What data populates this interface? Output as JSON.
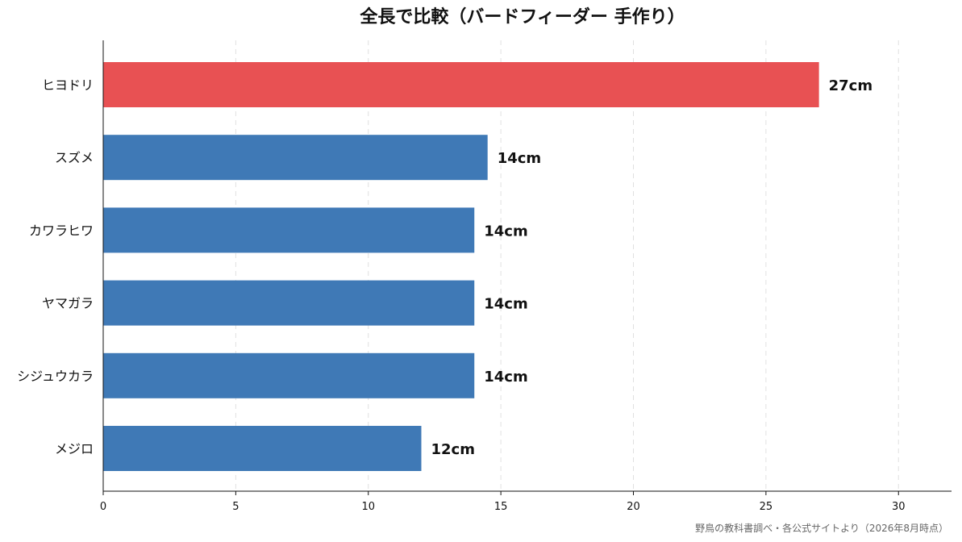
{
  "chart_data": {
    "type": "bar",
    "orientation": "horizontal",
    "title": "全長で比較（バードフィーダー 手作り）",
    "categories": [
      "ヒヨドリ",
      "スズメ",
      "カワラヒワ",
      "ヤマガラ",
      "シジュウカラ",
      "メジロ"
    ],
    "values": [
      27,
      14.5,
      14,
      14,
      14,
      12
    ],
    "data_labels": [
      "27cm",
      "14cm",
      "14cm",
      "14cm",
      "14cm",
      "12cm"
    ],
    "highlight_index": 0,
    "xlim": [
      0,
      32
    ],
    "x_ticks": [
      0,
      5,
      10,
      15,
      20,
      25,
      30
    ],
    "x_tick_labels": [
      "0",
      "5",
      "10",
      "15",
      "20",
      "25",
      "30"
    ],
    "grid": "vertical dashed",
    "colors": {
      "highlight": "#e85153",
      "default": "#3f79b6"
    }
  },
  "source_note": "野鳥の教科書調べ・各公式サイトより（2026年8月時点）"
}
